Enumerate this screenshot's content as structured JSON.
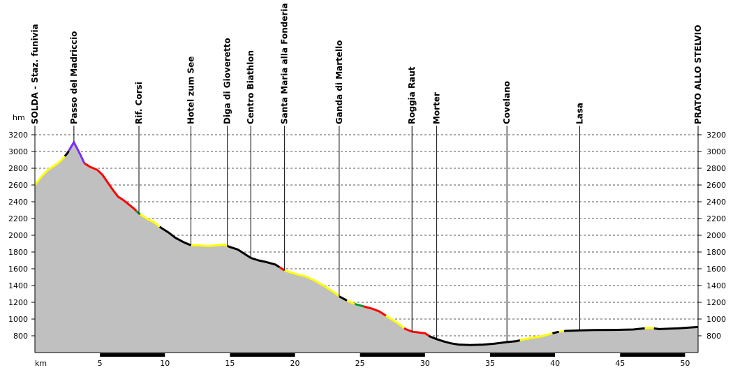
{
  "chart_data": {
    "type": "area",
    "title": "",
    "xlabel": "km",
    "ylabel": "hm",
    "xlim": [
      0,
      51
    ],
    "ylim": [
      600,
      3200
    ],
    "grid": true,
    "y_ticks": [
      800,
      1000,
      1200,
      1400,
      1600,
      1800,
      2000,
      2200,
      2400,
      2600,
      2800,
      3000,
      3200
    ],
    "x_ticks": [
      5,
      10,
      15,
      20,
      25,
      30,
      35,
      40,
      45,
      50
    ],
    "colors": {
      "fill": "#c0c0c0",
      "grid": "#555555",
      "black": "#000000",
      "yellow": "#ffff00",
      "red": "#ff0000",
      "purple": "#7b2cff",
      "green": "#009933"
    },
    "waypoints": [
      {
        "km": 0.0,
        "label": "SOLDA - Staz. funivia"
      },
      {
        "km": 3.0,
        "label": "Passo del Madriccio"
      },
      {
        "km": 8.0,
        "label": "Rif. Corsi"
      },
      {
        "km": 12.0,
        "label": "Hotel zum See"
      },
      {
        "km": 14.8,
        "label": "Diga di Gioveretto"
      },
      {
        "km": 16.6,
        "label": "Centro Biathlon"
      },
      {
        "km": 19.2,
        "label": "Santa Maria alla Fonderia"
      },
      {
        "km": 23.4,
        "label": "Ganda di Martello"
      },
      {
        "km": 29.0,
        "label": "Roggia Raut"
      },
      {
        "km": 30.9,
        "label": "Morter"
      },
      {
        "km": 36.3,
        "label": "Covelano"
      },
      {
        "km": 41.9,
        "label": "Lasa"
      },
      {
        "km": 51.0,
        "label": "PRATO ALLO STELVIO"
      }
    ],
    "profile": [
      [
        0.0,
        2600
      ],
      [
        0.5,
        2700
      ],
      [
        1.0,
        2780
      ],
      [
        1.5,
        2830
      ],
      [
        2.0,
        2890
      ],
      [
        2.5,
        2980
      ],
      [
        2.8,
        3060
      ],
      [
        3.0,
        3110
      ],
      [
        3.2,
        3050
      ],
      [
        3.5,
        2960
      ],
      [
        3.8,
        2860
      ],
      [
        4.2,
        2820
      ],
      [
        4.8,
        2780
      ],
      [
        5.2,
        2720
      ],
      [
        5.6,
        2630
      ],
      [
        6.0,
        2540
      ],
      [
        6.4,
        2460
      ],
      [
        6.8,
        2420
      ],
      [
        7.2,
        2370
      ],
      [
        7.6,
        2320
      ],
      [
        8.0,
        2260
      ],
      [
        8.6,
        2200
      ],
      [
        9.2,
        2150
      ],
      [
        9.7,
        2090
      ],
      [
        10.3,
        2030
      ],
      [
        10.8,
        1970
      ],
      [
        11.4,
        1920
      ],
      [
        12.0,
        1880
      ],
      [
        12.6,
        1880
      ],
      [
        13.3,
        1870
      ],
      [
        14.0,
        1880
      ],
      [
        14.5,
        1890
      ],
      [
        15.0,
        1860
      ],
      [
        15.6,
        1830
      ],
      [
        16.1,
        1780
      ],
      [
        16.6,
        1730
      ],
      [
        17.2,
        1700
      ],
      [
        17.8,
        1680
      ],
      [
        18.5,
        1650
      ],
      [
        19.2,
        1580
      ],
      [
        20.0,
        1540
      ],
      [
        20.8,
        1510
      ],
      [
        21.5,
        1460
      ],
      [
        22.3,
        1390
      ],
      [
        23.0,
        1320
      ],
      [
        23.4,
        1270
      ],
      [
        24.0,
        1220
      ],
      [
        24.6,
        1180
      ],
      [
        25.3,
        1150
      ],
      [
        26.0,
        1120
      ],
      [
        26.5,
        1090
      ],
      [
        27.0,
        1040
      ],
      [
        27.5,
        990
      ],
      [
        28.0,
        940
      ],
      [
        28.5,
        880
      ],
      [
        29.0,
        850
      ],
      [
        29.5,
        840
      ],
      [
        30.0,
        830
      ],
      [
        30.4,
        790
      ],
      [
        30.9,
        760
      ],
      [
        31.5,
        730
      ],
      [
        32.0,
        710
      ],
      [
        32.6,
        695
      ],
      [
        33.5,
        690
      ],
      [
        34.5,
        695
      ],
      [
        35.3,
        705
      ],
      [
        36.3,
        725
      ],
      [
        37.0,
        735
      ],
      [
        37.5,
        755
      ],
      [
        38.2,
        775
      ],
      [
        39.0,
        795
      ],
      [
        39.6,
        820
      ],
      [
        40.2,
        845
      ],
      [
        40.8,
        858
      ],
      [
        41.9,
        865
      ],
      [
        43.0,
        868
      ],
      [
        44.5,
        870
      ],
      [
        46.0,
        875
      ],
      [
        47.3,
        895
      ],
      [
        48.0,
        880
      ],
      [
        49.5,
        890
      ],
      [
        51.0,
        905
      ]
    ],
    "surface_segments": [
      {
        "from": 0.0,
        "to": 2.3,
        "color": "yellow"
      },
      {
        "from": 2.3,
        "to": 2.6,
        "color": "black"
      },
      {
        "from": 2.6,
        "to": 3.8,
        "color": "purple"
      },
      {
        "from": 3.8,
        "to": 7.8,
        "color": "red"
      },
      {
        "from": 7.8,
        "to": 8.1,
        "color": "green"
      },
      {
        "from": 8.1,
        "to": 9.6,
        "color": "yellow"
      },
      {
        "from": 9.6,
        "to": 12.0,
        "color": "black"
      },
      {
        "from": 12.0,
        "to": 14.8,
        "color": "yellow"
      },
      {
        "from": 14.8,
        "to": 18.8,
        "color": "black"
      },
      {
        "from": 18.8,
        "to": 19.2,
        "color": "red"
      },
      {
        "from": 19.2,
        "to": 23.4,
        "color": "yellow"
      },
      {
        "from": 23.4,
        "to": 24.0,
        "color": "black"
      },
      {
        "from": 24.0,
        "to": 24.6,
        "color": "yellow"
      },
      {
        "from": 24.6,
        "to": 25.3,
        "color": "green"
      },
      {
        "from": 25.3,
        "to": 27.0,
        "color": "red"
      },
      {
        "from": 27.0,
        "to": 28.4,
        "color": "yellow"
      },
      {
        "from": 28.4,
        "to": 30.3,
        "color": "red"
      },
      {
        "from": 30.3,
        "to": 37.3,
        "color": "black"
      },
      {
        "from": 37.3,
        "to": 39.8,
        "color": "yellow"
      },
      {
        "from": 39.8,
        "to": 40.3,
        "color": "black"
      },
      {
        "from": 40.3,
        "to": 40.7,
        "color": "yellow"
      },
      {
        "from": 40.7,
        "to": 46.9,
        "color": "black"
      },
      {
        "from": 46.9,
        "to": 47.6,
        "color": "yellow"
      },
      {
        "from": 47.6,
        "to": 51.0,
        "color": "black"
      }
    ]
  }
}
